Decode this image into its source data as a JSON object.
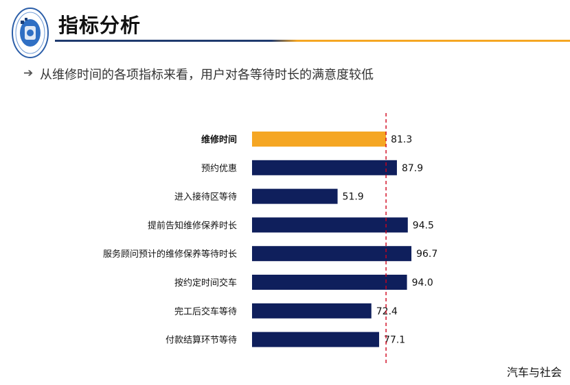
{
  "header": {
    "title": "指标分析",
    "bullet_icon": "arrow-right-icon",
    "subtitle": "从维修时间的各项指标来看，用户对各等待时长的满意度较低",
    "accent_blue": "#1f3a6e",
    "accent_orange": "#f5a623"
  },
  "logo": {
    "icon": "association-seal-icon"
  },
  "chart_data": {
    "type": "bar",
    "orientation": "horizontal",
    "title": "",
    "xlabel": "",
    "ylabel": "",
    "categories": [
      "维修时间",
      "预约优惠",
      "进入接待区等待",
      "提前告知维修保养时长",
      "服务顾问预计的维修保养等待时长",
      "按约定时间交车",
      "完工后交车等待",
      "付款结算环节等待"
    ],
    "values": [
      81.3,
      87.9,
      51.9,
      94.5,
      96.7,
      94.0,
      72.4,
      77.1
    ],
    "value_labels": [
      "81.3",
      "87.9",
      "51.9",
      "94.5",
      "96.7",
      "94.0",
      "72.4",
      "77.1"
    ],
    "highlight_index": 0,
    "reference_line": 81.3,
    "xlim": [
      0,
      100
    ],
    "colors": {
      "bar": "#0f1f5c",
      "highlight": "#f5a623",
      "reference": "#d0021b"
    },
    "grid": false,
    "legend": "none"
  },
  "footer": {
    "source": "汽车与社会"
  }
}
